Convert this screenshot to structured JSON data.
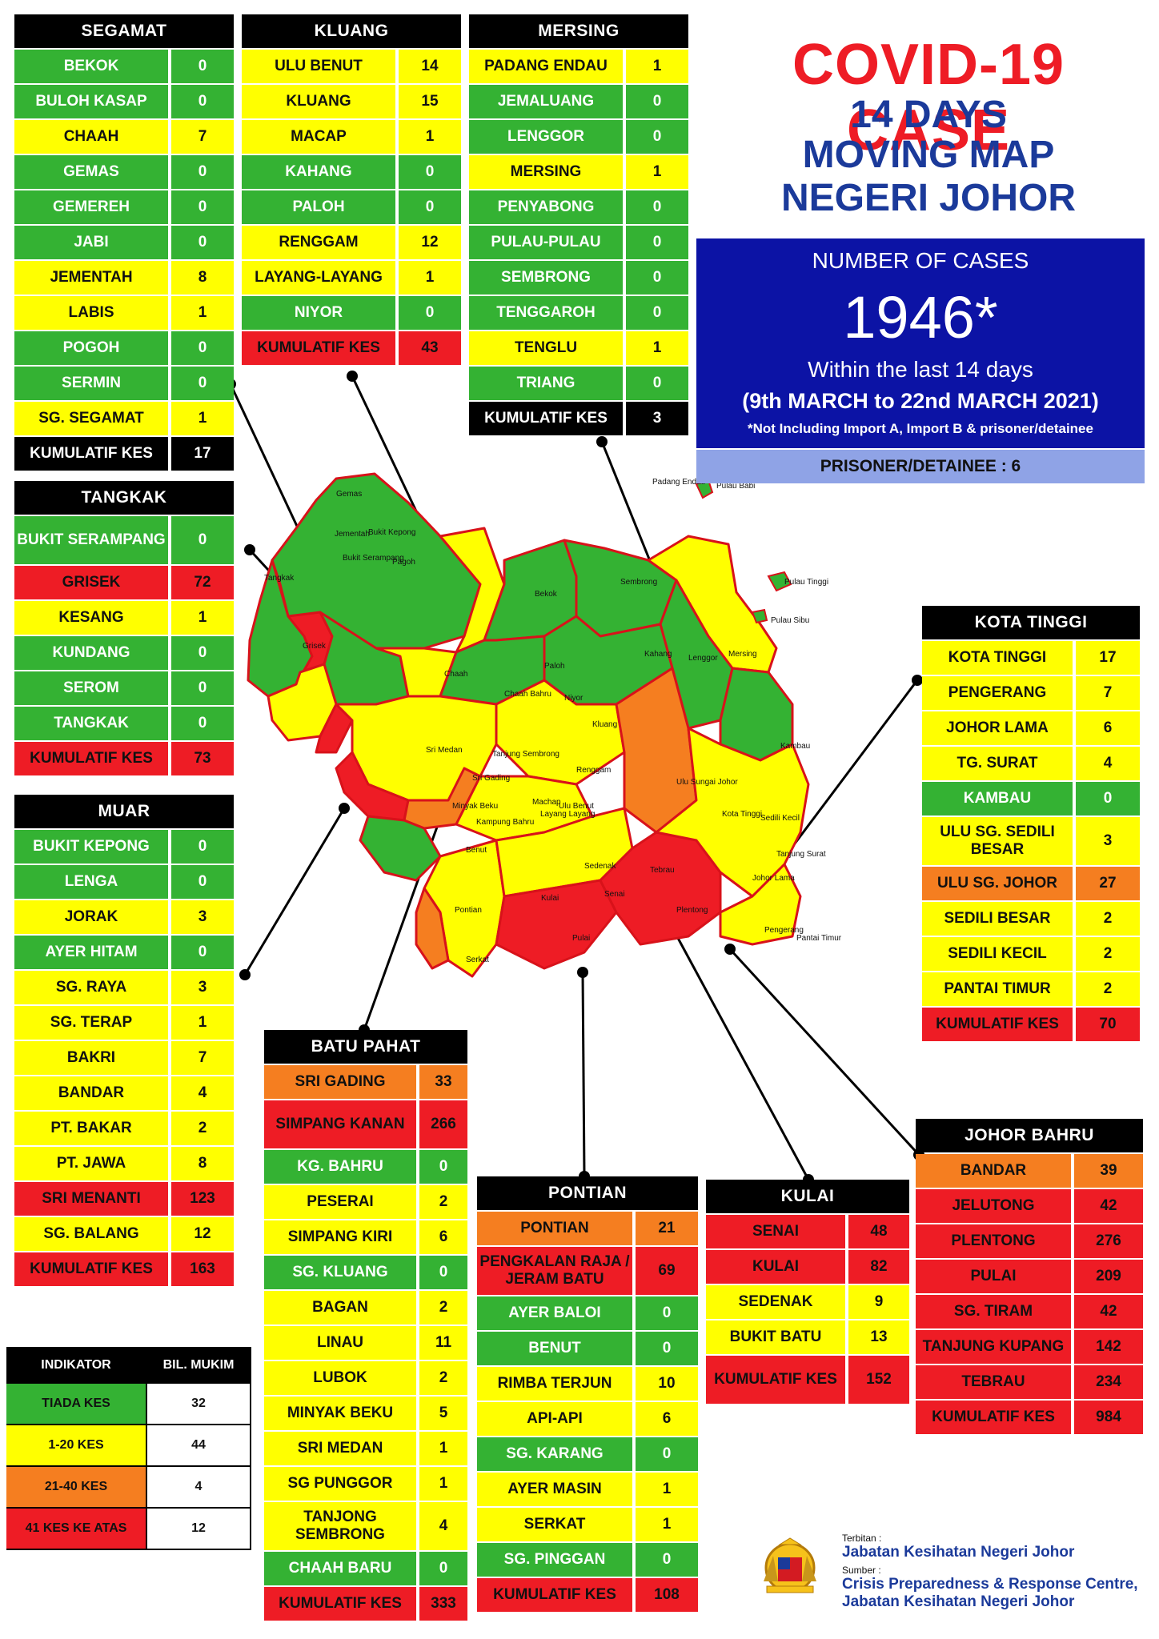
{
  "title": {
    "line1": "COVID-19 CASE",
    "line2": "14 DAYS",
    "line3": "MOVING MAP",
    "line4": "NEGERI JOHOR"
  },
  "summary": {
    "label": "NUMBER OF CASES",
    "total": "1946*",
    "within": "Within the last 14 days",
    "period": "(9th MARCH to 22nd MARCH 2021)",
    "note": "*Not Including Import A, Import B & prisoner/detainee",
    "prisoner": "PRISONER/DETAINEE : 6"
  },
  "colors": {
    "green": "#34b233",
    "yellow": "#ffff00",
    "orange": "#f57e20",
    "red": "#ee1c25"
  },
  "districts": {
    "segamat": {
      "name": "SEGAMAT",
      "rows": [
        {
          "name": "BEKOK",
          "count": "0",
          "level": "g"
        },
        {
          "name": "BULOH KASAP",
          "count": "0",
          "level": "g"
        },
        {
          "name": "CHAAH",
          "count": "7",
          "level": "y"
        },
        {
          "name": "GEMAS",
          "count": "0",
          "level": "g"
        },
        {
          "name": "GEMEREH",
          "count": "0",
          "level": "g"
        },
        {
          "name": "JABI",
          "count": "0",
          "level": "g"
        },
        {
          "name": "JEMENTAH",
          "count": "8",
          "level": "y"
        },
        {
          "name": "LABIS",
          "count": "1",
          "level": "y"
        },
        {
          "name": "POGOH",
          "count": "0",
          "level": "g"
        },
        {
          "name": "SERMIN",
          "count": "0",
          "level": "g"
        },
        {
          "name": "SG. SEGAMAT",
          "count": "1",
          "level": "y"
        },
        {
          "name": "KUMULATIF KES",
          "count": "17",
          "level": "k"
        }
      ]
    },
    "kluang": {
      "name": "KLUANG",
      "rows": [
        {
          "name": "ULU BENUT",
          "count": "14",
          "level": "y"
        },
        {
          "name": "KLUANG",
          "count": "15",
          "level": "y"
        },
        {
          "name": "MACAP",
          "count": "1",
          "level": "y"
        },
        {
          "name": "KAHANG",
          "count": "0",
          "level": "g"
        },
        {
          "name": "PALOH",
          "count": "0",
          "level": "g"
        },
        {
          "name": "RENGGAM",
          "count": "12",
          "level": "y"
        },
        {
          "name": "LAYANG-LAYANG",
          "count": "1",
          "level": "y"
        },
        {
          "name": "NIYOR",
          "count": "0",
          "level": "g"
        },
        {
          "name": "KUMULATIF KES",
          "count": "43",
          "level": "r"
        }
      ]
    },
    "mersing": {
      "name": "MERSING",
      "rows": [
        {
          "name": "PADANG ENDAU",
          "count": "1",
          "level": "y"
        },
        {
          "name": "JEMALUANG",
          "count": "0",
          "level": "g"
        },
        {
          "name": "LENGGOR",
          "count": "0",
          "level": "g"
        },
        {
          "name": "MERSING",
          "count": "1",
          "level": "y"
        },
        {
          "name": "PENYABONG",
          "count": "0",
          "level": "g"
        },
        {
          "name": "PULAU-PULAU",
          "count": "0",
          "level": "g"
        },
        {
          "name": "SEMBRONG",
          "count": "0",
          "level": "g"
        },
        {
          "name": "TENGGAROH",
          "count": "0",
          "level": "g"
        },
        {
          "name": "TENGLU",
          "count": "1",
          "level": "y"
        },
        {
          "name": "TRIANG",
          "count": "0",
          "level": "g"
        },
        {
          "name": "KUMULATIF KES",
          "count": "3",
          "level": "k"
        }
      ]
    },
    "tangkak": {
      "name": "TANGKAK",
      "rows": [
        {
          "name": "BUKIT SERAMPANG",
          "count": "0",
          "level": "g"
        },
        {
          "name": "GRISEK",
          "count": "72",
          "level": "r"
        },
        {
          "name": "KESANG",
          "count": "1",
          "level": "y"
        },
        {
          "name": "KUNDANG",
          "count": "0",
          "level": "g"
        },
        {
          "name": "SEROM",
          "count": "0",
          "level": "g"
        },
        {
          "name": "TANGKAK",
          "count": "0",
          "level": "g"
        },
        {
          "name": "KUMULATIF KES",
          "count": "73",
          "level": "r"
        }
      ]
    },
    "muar": {
      "name": "MUAR",
      "rows": [
        {
          "name": "BUKIT KEPONG",
          "count": "0",
          "level": "g"
        },
        {
          "name": "LENGA",
          "count": "0",
          "level": "g"
        },
        {
          "name": "JORAK",
          "count": "3",
          "level": "y"
        },
        {
          "name": "AYER HITAM",
          "count": "0",
          "level": "g"
        },
        {
          "name": "SG. RAYA",
          "count": "3",
          "level": "y"
        },
        {
          "name": "SG. TERAP",
          "count": "1",
          "level": "y"
        },
        {
          "name": "BAKRI",
          "count": "7",
          "level": "y"
        },
        {
          "name": "BANDAR",
          "count": "4",
          "level": "y"
        },
        {
          "name": "PT. BAKAR",
          "count": "2",
          "level": "y"
        },
        {
          "name": "PT. JAWA",
          "count": "8",
          "level": "y"
        },
        {
          "name": "SRI MENANTI",
          "count": "123",
          "level": "r"
        },
        {
          "name": "SG. BALANG",
          "count": "12",
          "level": "y"
        },
        {
          "name": "KUMULATIF KES",
          "count": "163",
          "level": "r"
        }
      ]
    },
    "batu_pahat": {
      "name": "BATU PAHAT",
      "rows": [
        {
          "name": "SRI GADING",
          "count": "33",
          "level": "o"
        },
        {
          "name": "SIMPANG KANAN",
          "count": "266",
          "level": "r"
        },
        {
          "name": "KG. BAHRU",
          "count": "0",
          "level": "g"
        },
        {
          "name": "PESERAI",
          "count": "2",
          "level": "y"
        },
        {
          "name": "SIMPANG KIRI",
          "count": "6",
          "level": "y"
        },
        {
          "name": "SG. KLUANG",
          "count": "0",
          "level": "g"
        },
        {
          "name": "BAGAN",
          "count": "2",
          "level": "y"
        },
        {
          "name": "LINAU",
          "count": "11",
          "level": "y"
        },
        {
          "name": "LUBOK",
          "count": "2",
          "level": "y"
        },
        {
          "name": "MINYAK BEKU",
          "count": "5",
          "level": "y"
        },
        {
          "name": "SRI MEDAN",
          "count": "1",
          "level": "y"
        },
        {
          "name": "SG PUNGGOR",
          "count": "1",
          "level": "y"
        },
        {
          "name": "TANJONG SEMBRONG",
          "count": "4",
          "level": "y"
        },
        {
          "name": "CHAAH BARU",
          "count": "0",
          "level": "g"
        },
        {
          "name": "KUMULATIF KES",
          "count": "333",
          "level": "r"
        }
      ]
    },
    "pontian": {
      "name": "PONTIAN",
      "rows": [
        {
          "name": "PONTIAN",
          "count": "21",
          "level": "o"
        },
        {
          "name": "PENGKALAN RAJA / JERAM BATU",
          "count": "69",
          "level": "r"
        },
        {
          "name": "AYER BALOI",
          "count": "0",
          "level": "g"
        },
        {
          "name": "BENUT",
          "count": "0",
          "level": "g"
        },
        {
          "name": "RIMBA TERJUN",
          "count": "10",
          "level": "y"
        },
        {
          "name": "API-API",
          "count": "6",
          "level": "y"
        },
        {
          "name": "SG. KARANG",
          "count": "0",
          "level": "g"
        },
        {
          "name": "AYER MASIN",
          "count": "1",
          "level": "y"
        },
        {
          "name": "SERKAT",
          "count": "1",
          "level": "y"
        },
        {
          "name": "SG. PINGGAN",
          "count": "0",
          "level": "g"
        },
        {
          "name": "KUMULATIF KES",
          "count": "108",
          "level": "r"
        }
      ]
    },
    "kulai": {
      "name": "KULAI",
      "rows": [
        {
          "name": "SENAI",
          "count": "48",
          "level": "r"
        },
        {
          "name": "KULAI",
          "count": "82",
          "level": "r"
        },
        {
          "name": "SEDENAK",
          "count": "9",
          "level": "y"
        },
        {
          "name": "BUKIT BATU",
          "count": "13",
          "level": "y"
        },
        {
          "name": "KUMULATIF KES",
          "count": "152",
          "level": "r"
        }
      ]
    },
    "johor_bahru": {
      "name": "JOHOR BAHRU",
      "rows": [
        {
          "name": "BANDAR",
          "count": "39",
          "level": "o"
        },
        {
          "name": "JELUTONG",
          "count": "42",
          "level": "r"
        },
        {
          "name": "PLENTONG",
          "count": "276",
          "level": "r"
        },
        {
          "name": "PULAI",
          "count": "209",
          "level": "r"
        },
        {
          "name": "SG. TIRAM",
          "count": "42",
          "level": "r"
        },
        {
          "name": "TANJUNG KUPANG",
          "count": "142",
          "level": "r"
        },
        {
          "name": "TEBRAU",
          "count": "234",
          "level": "r"
        },
        {
          "name": "KUMULATIF KES",
          "count": "984",
          "level": "r"
        }
      ]
    },
    "kota_tinggi": {
      "name": "KOTA TINGGI",
      "rows": [
        {
          "name": "KOTA TINGGI",
          "count": "17",
          "level": "y"
        },
        {
          "name": "PENGERANG",
          "count": "7",
          "level": "y"
        },
        {
          "name": "JOHOR LAMA",
          "count": "6",
          "level": "y"
        },
        {
          "name": "TG. SURAT",
          "count": "4",
          "level": "y"
        },
        {
          "name": "KAMBAU",
          "count": "0",
          "level": "g"
        },
        {
          "name": "ULU SG. SEDILI BESAR",
          "count": "3",
          "level": "y"
        },
        {
          "name": "ULU  SG. JOHOR",
          "count": "27",
          "level": "o"
        },
        {
          "name": "SEDILI BESAR",
          "count": "2",
          "level": "y"
        },
        {
          "name": "SEDILI KECIL",
          "count": "2",
          "level": "y"
        },
        {
          "name": "PANTAI TIMUR",
          "count": "2",
          "level": "y"
        },
        {
          "name": "KUMULATIF KES",
          "count": "70",
          "level": "r"
        }
      ]
    }
  },
  "legend": {
    "header_indicator": "INDIKATOR",
    "header_count": "BIL. MUKIM",
    "rows": [
      {
        "label": "TIADA KES",
        "count": "32",
        "level": "g"
      },
      {
        "label": "1-20 KES",
        "count": "44",
        "level": "y"
      },
      {
        "label": "21-40 KES",
        "count": "4",
        "level": "o"
      },
      {
        "label": "41 KES KE ATAS",
        "count": "12",
        "level": "r"
      }
    ]
  },
  "footer": {
    "terbitan_label": "Terbitan :",
    "terbitan": "Jabatan Kesihatan Negeri Johor",
    "sumber_label": "Sumber :",
    "sumber1": "Crisis Preparedness & Response Centre,",
    "sumber2": "Jabatan Kesihatan Negeri Johor"
  },
  "map_labels": [
    "Gemas",
    "Bukit Kepong",
    "Jementah",
    "Tangkak",
    "Grisek",
    "Pagoh",
    "Bukit Serampang",
    "Chaah",
    "Chaah Bahru",
    "Bekok",
    "Sembrong",
    "Padang Endau",
    "Pulau Babi",
    "Pulau Tinggi",
    "Pulau Sibu",
    "Lenggor",
    "Mersing",
    "Paloh",
    "Niyor",
    "Kahang",
    "Kluang",
    "Renggam",
    "Machap",
    "Layang Layang",
    "Sri Gading",
    "Sri Medan",
    "Tanjung Sembrong",
    "Minyak Beku",
    "Kampung Bahru",
    "Ulu Benut",
    "Benut",
    "Pontian",
    "Serkat",
    "Kulai",
    "Senai",
    "Pulai",
    "Tebrau",
    "Plentong",
    "Sedenak",
    "Ulu Sungai Johor",
    "Kota Tinggi",
    "Sedili Kecil",
    "Johor Lama",
    "Tanjung Surat",
    "Pengerang",
    "Pantai Timur",
    "Kambau"
  ]
}
